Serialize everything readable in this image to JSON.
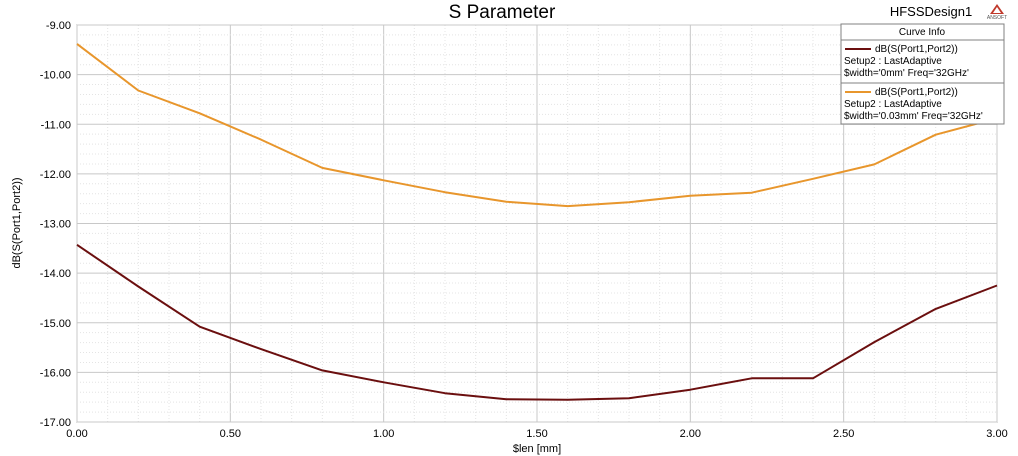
{
  "chart_data": {
    "type": "line",
    "title": "S Parameter",
    "design_name": "HFSSDesign1",
    "logo_text": "ANSOFT",
    "xlabel": "$len [mm]",
    "ylabel": "dB(S(Port1,Port2))",
    "xlim": [
      0,
      3
    ],
    "ylim": [
      -17,
      -9
    ],
    "x_ticks": [
      "0.00",
      "0.50",
      "1.00",
      "1.50",
      "2.00",
      "2.50",
      "3.00"
    ],
    "y_ticks": [
      "-9.00",
      "-10.00",
      "-11.00",
      "-12.00",
      "-13.00",
      "-14.00",
      "-15.00",
      "-16.00",
      "-17.00"
    ],
    "grid": true,
    "legend_title": "Curve Info",
    "legend_position": "top-right",
    "series": [
      {
        "legend_lines": [
          "dB(S(Port1,Port2))",
          "Setup2 : LastAdaptive",
          "$width='0mm' Freq='32GHz'"
        ],
        "color": "#6b0f0f",
        "x": [
          0,
          0.2,
          0.4,
          0.6,
          0.8,
          1.0,
          1.2,
          1.4,
          1.6,
          1.8,
          2.0,
          2.2,
          2.4,
          2.6,
          2.8,
          3.0
        ],
        "y": [
          -13.43,
          -14.27,
          -15.08,
          -15.53,
          -15.96,
          -16.2,
          -16.42,
          -16.54,
          -16.55,
          -16.52,
          -16.35,
          -16.12,
          -16.12,
          -15.39,
          -14.72,
          -14.25
        ]
      },
      {
        "legend_lines": [
          "dB(S(Port1,Port2))",
          "Setup2 : LastAdaptive",
          "$width='0.03mm' Freq='32GHz'"
        ],
        "color": "#e8962c",
        "x": [
          0,
          0.2,
          0.4,
          0.6,
          0.8,
          1.0,
          1.2,
          1.4,
          1.6,
          1.8,
          2.0,
          2.2,
          2.4,
          2.6,
          2.8,
          3.0
        ],
        "y": [
          -9.38,
          -10.32,
          -10.78,
          -11.31,
          -11.88,
          -12.13,
          -12.37,
          -12.56,
          -12.65,
          -12.57,
          -12.44,
          -12.38,
          -12.1,
          -11.81,
          -11.21,
          -10.88
        ]
      }
    ]
  }
}
